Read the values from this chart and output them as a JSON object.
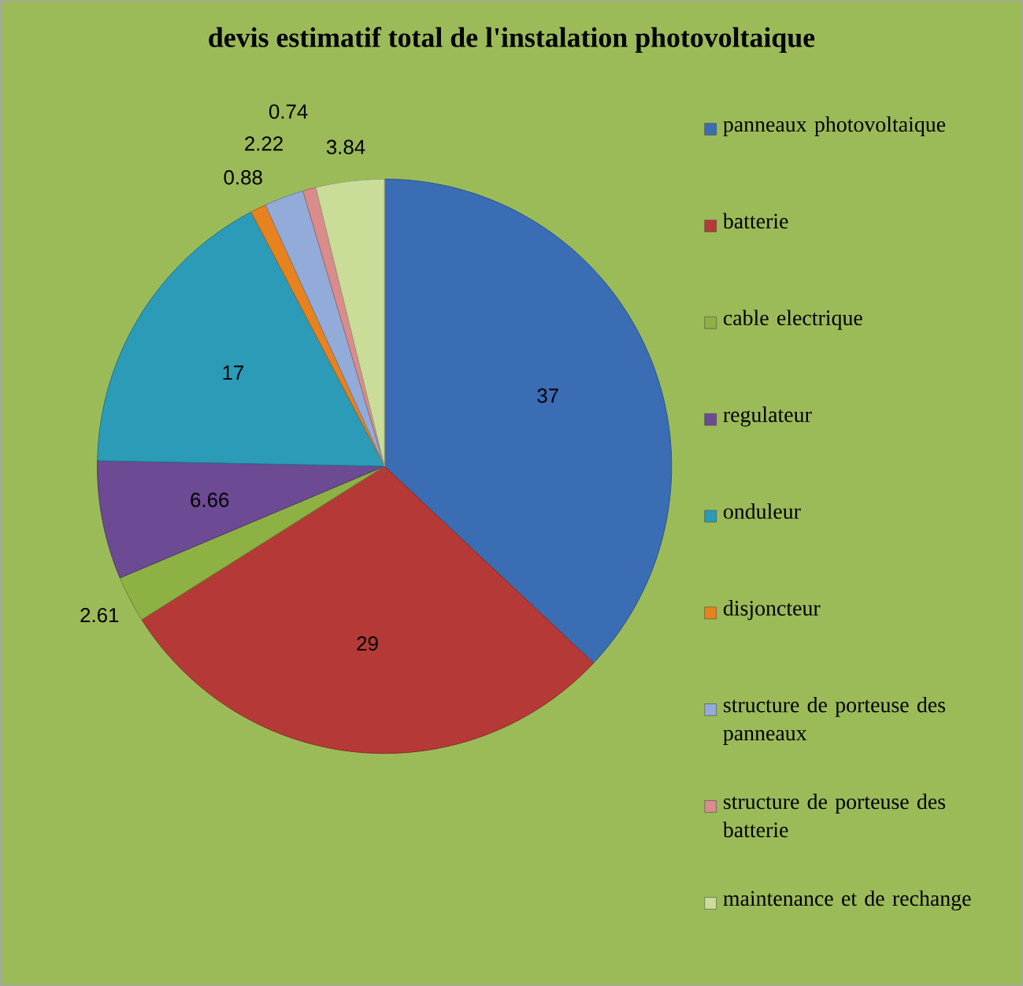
{
  "chart_data": {
    "type": "pie",
    "title": "devis estimatif total de l'instalation photovoltaique",
    "categories": [
      "panneaux photovoltaique",
      "batterie",
      "cable electrique",
      "regulateur",
      "onduleur",
      "disjoncteur",
      "structure de porteuse des panneaux",
      "structure de porteuse des batterie",
      "maintenance et de rechange"
    ],
    "values": [
      37,
      29,
      2.61,
      6.66,
      17,
      0.88,
      2.22,
      0.74,
      3.84
    ],
    "colors": [
      "#3a6db3",
      "#b53a37",
      "#8db143",
      "#6c4a94",
      "#2b9bb7",
      "#e8821f",
      "#92abd9",
      "#d98c8b",
      "#c9dc98"
    ],
    "data_labels": true,
    "legend": "right"
  }
}
